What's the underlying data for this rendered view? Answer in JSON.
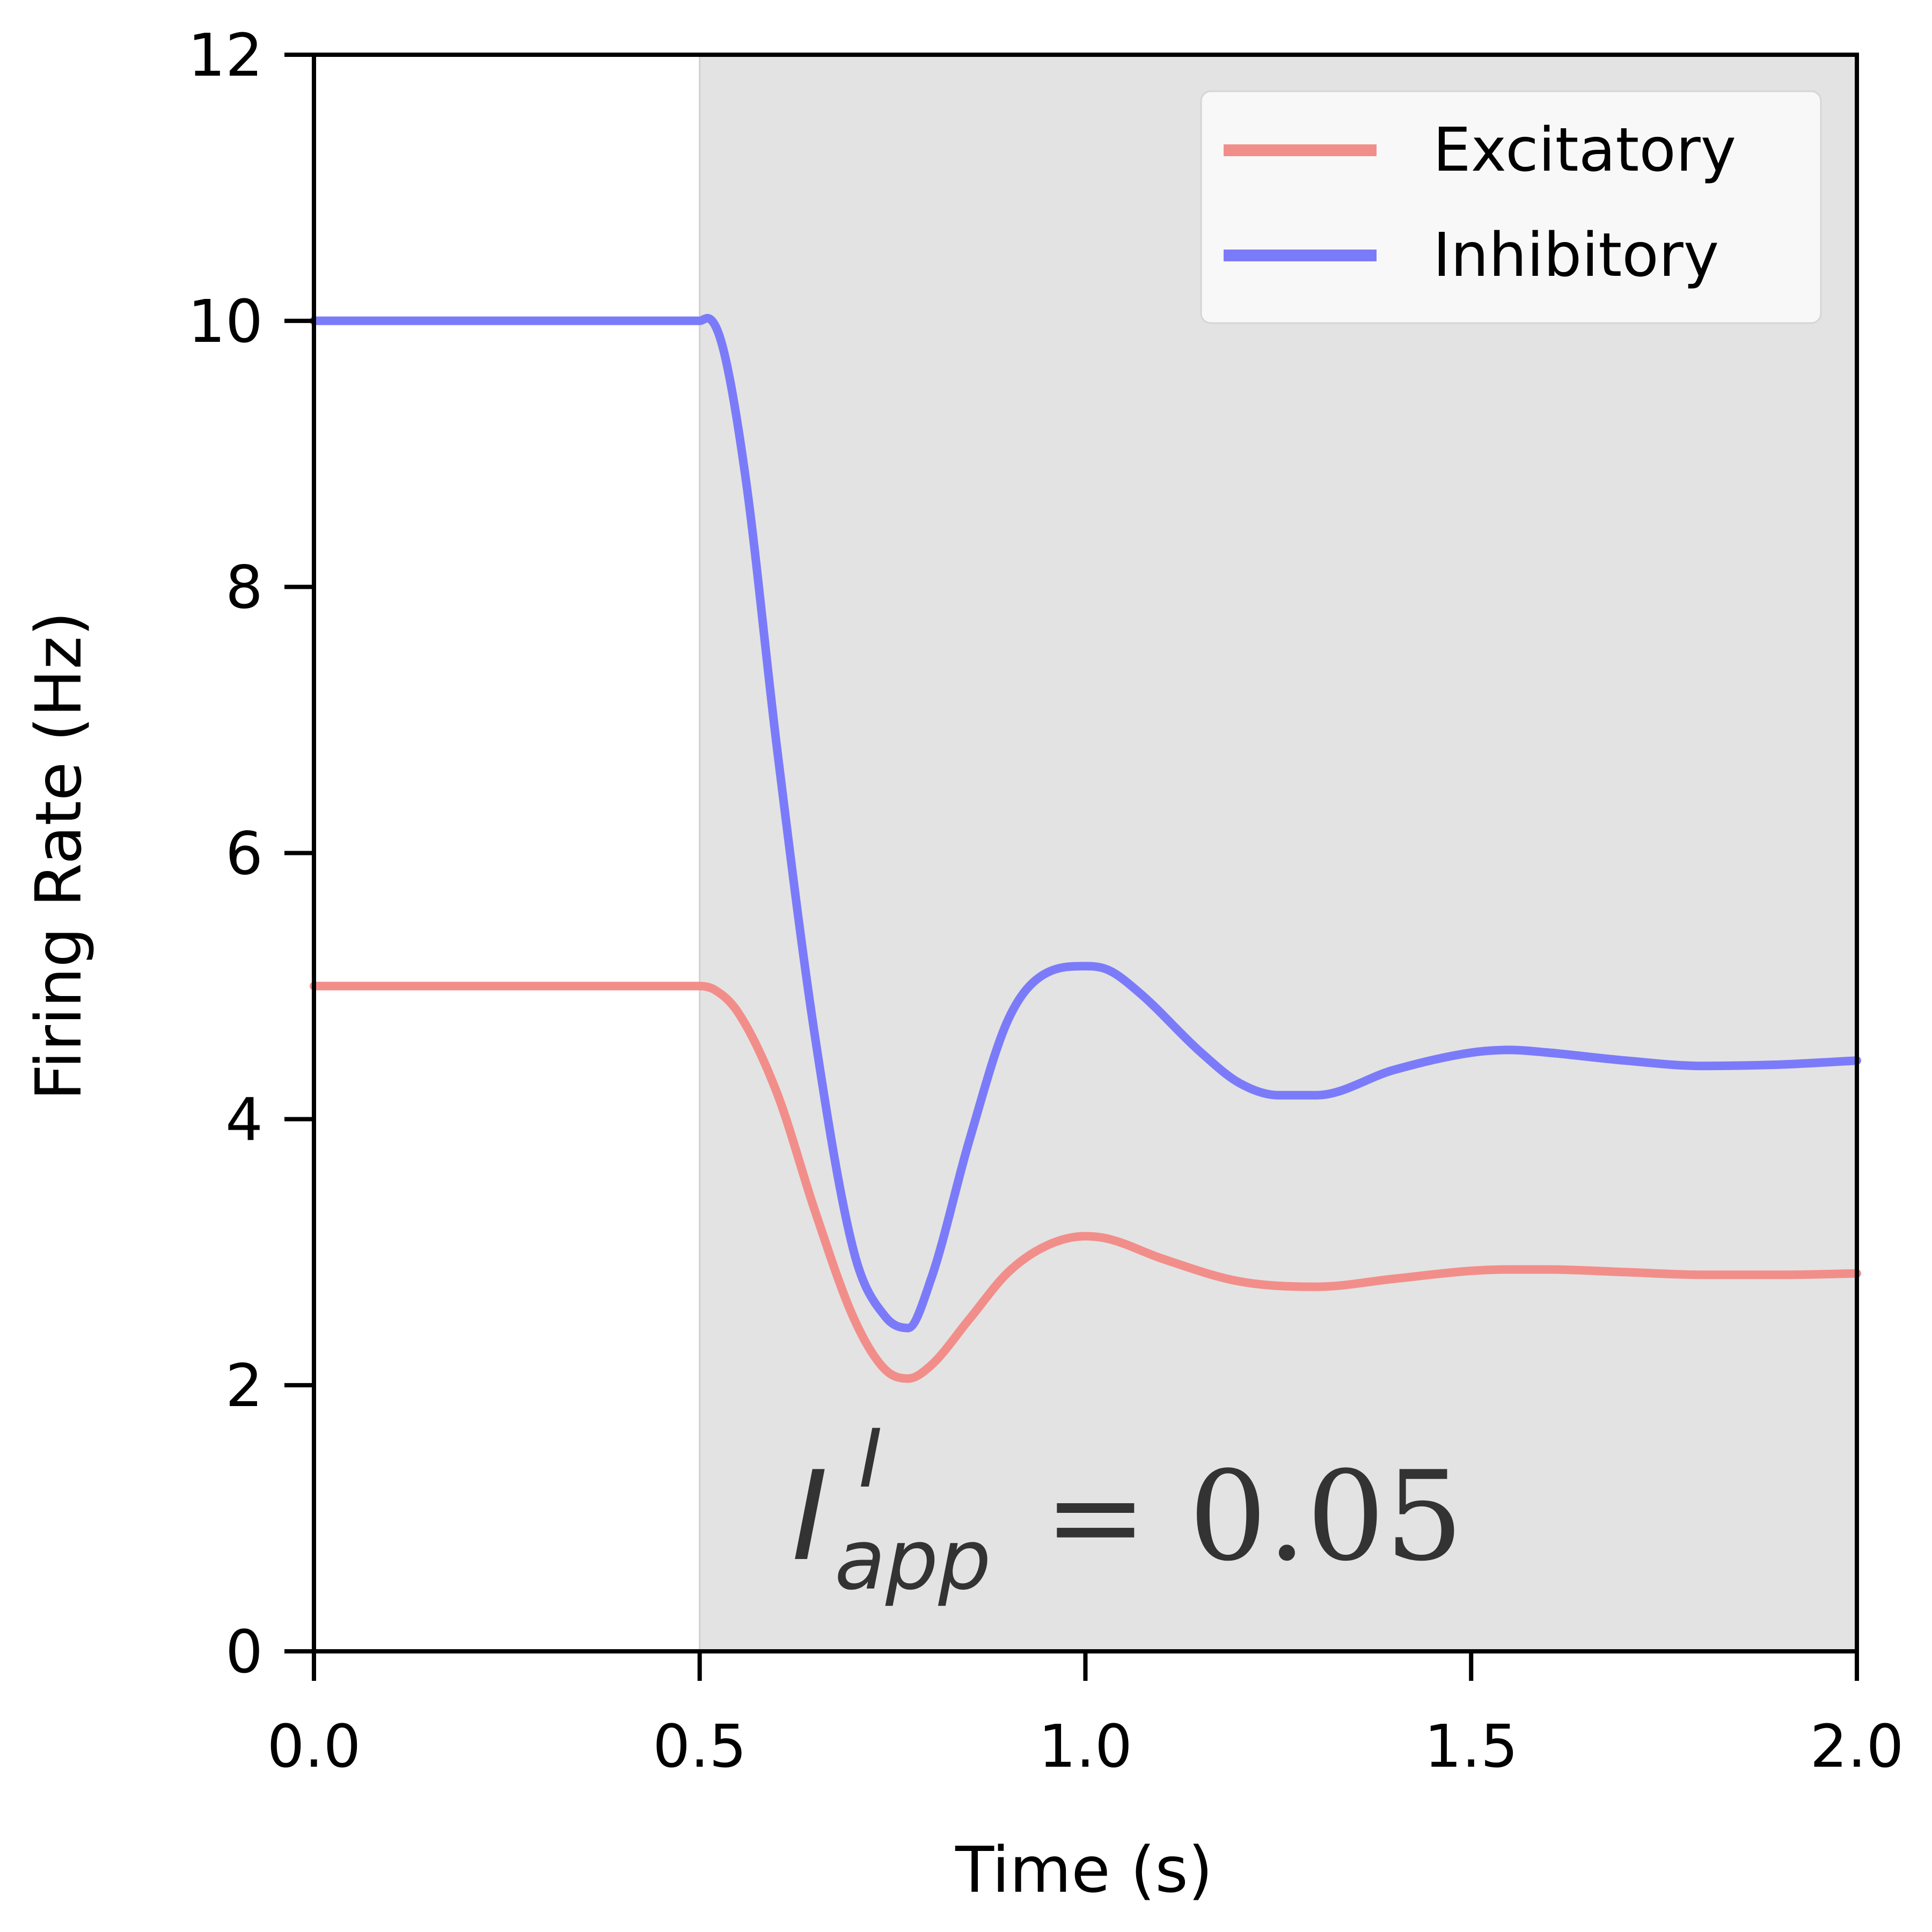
{
  "chart_data": {
    "type": "line",
    "xlabel": "Time (s)",
    "ylabel": "Firing Rate (Hz)",
    "xlim": [
      0.0,
      2.0
    ],
    "ylim": [
      0,
      12
    ],
    "xticks": [
      "0.0",
      "0.5",
      "1.0",
      "1.5",
      "2.0"
    ],
    "yticks": [
      "0",
      "2",
      "4",
      "6",
      "8",
      "10",
      "12"
    ],
    "grid": false,
    "legend_position": "top-right",
    "shaded_region": {
      "x_start": 0.5,
      "x_end": 2.0,
      "color": "#e3e3e3"
    },
    "annotation": {
      "symbol": "I",
      "superscript": "I",
      "subscript": "app",
      "equals": "=",
      "value": "0.05"
    },
    "series": [
      {
        "name": "Excitatory",
        "color": "#f28e8a",
        "x": [
          0.0,
          0.5,
          0.52,
          0.55,
          0.6,
          0.65,
          0.7,
          0.74,
          0.77,
          0.8,
          0.85,
          0.9,
          0.95,
          1.0,
          1.03,
          1.1,
          1.2,
          1.3,
          1.4,
          1.5,
          1.55,
          1.6,
          1.7,
          1.8,
          1.9,
          2.0
        ],
        "y": [
          5.0,
          5.0,
          4.97,
          4.8,
          4.2,
          3.3,
          2.5,
          2.12,
          2.05,
          2.15,
          2.5,
          2.85,
          3.05,
          3.12,
          3.1,
          2.95,
          2.78,
          2.74,
          2.8,
          2.86,
          2.87,
          2.87,
          2.85,
          2.83,
          2.83,
          2.84
        ]
      },
      {
        "name": "Inhibitory",
        "color": "#7b7bfa",
        "x": [
          0.0,
          0.5,
          0.51,
          0.53,
          0.56,
          0.6,
          0.65,
          0.7,
          0.74,
          0.77,
          0.8,
          0.85,
          0.9,
          0.95,
          1.0,
          1.03,
          1.07,
          1.15,
          1.2,
          1.25,
          1.3,
          1.4,
          1.5,
          1.55,
          1.6,
          1.7,
          1.8,
          1.9,
          2.0
        ],
        "y": [
          10.0,
          10.0,
          10.02,
          9.8,
          8.8,
          6.8,
          4.6,
          3.0,
          2.52,
          2.43,
          2.8,
          3.85,
          4.75,
          5.1,
          5.15,
          5.12,
          4.95,
          4.5,
          4.27,
          4.18,
          4.18,
          4.37,
          4.5,
          4.52,
          4.5,
          4.44,
          4.4,
          4.41,
          4.44
        ]
      }
    ]
  }
}
